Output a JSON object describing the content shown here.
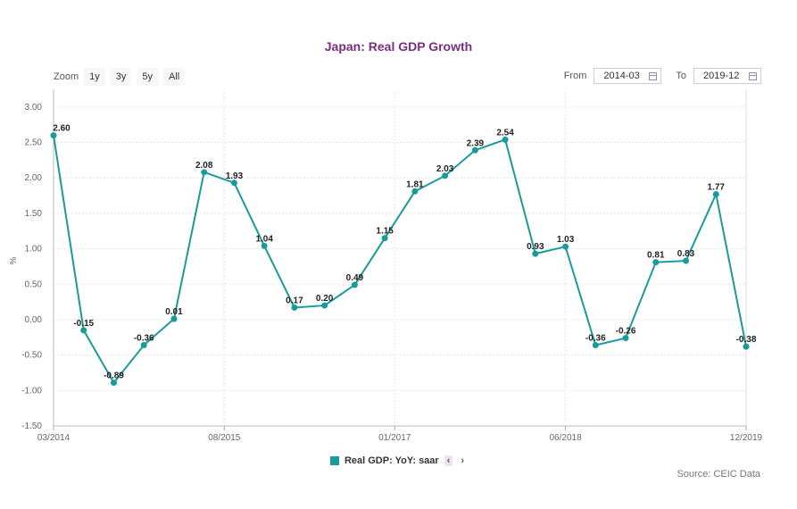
{
  "chart_data": {
    "type": "line",
    "title": "Japan: Real GDP Growth",
    "ylabel": "%",
    "ylim": [
      -1.5,
      3.25
    ],
    "yticks": [
      "3.00",
      "2.50",
      "2.00",
      "1.50",
      "1.00",
      "0.50",
      "0.00",
      "-0.50",
      "-1.00",
      "-1.50"
    ],
    "ytick_values": [
      3.0,
      2.5,
      2.0,
      1.5,
      1.0,
      0.5,
      0.0,
      -0.5,
      -1.0,
      -1.5
    ],
    "x_labels": [
      "03/2014",
      "08/2015",
      "01/2017",
      "06/2018",
      "12/2019"
    ],
    "x_label_indices": [
      0,
      5.67,
      11.33,
      17,
      23
    ],
    "grid": true,
    "legend_position": "bottom",
    "color": "#1a9a9a",
    "series": [
      {
        "name": "Real GDP: YoY: saar",
        "x": [
          "2014-03",
          "2014-06",
          "2014-09",
          "2014-12",
          "2015-03",
          "2015-06",
          "2015-09",
          "2015-12",
          "2016-03",
          "2016-06",
          "2016-09",
          "2016-12",
          "2017-03",
          "2017-06",
          "2017-09",
          "2017-12",
          "2018-03",
          "2018-06",
          "2018-09",
          "2018-12",
          "2019-03",
          "2019-06",
          "2019-09",
          "2019-12"
        ],
        "values": [
          2.6,
          -0.15,
          -0.89,
          -0.36,
          0.01,
          2.08,
          1.93,
          1.04,
          0.17,
          0.2,
          0.49,
          1.15,
          1.81,
          2.03,
          2.39,
          2.54,
          0.93,
          1.03,
          -0.36,
          -0.26,
          0.81,
          0.83,
          1.77,
          -0.38
        ],
        "labels": [
          "2.60",
          "-0.15",
          "-0.89",
          "-0.36",
          "0.01",
          "2.08",
          "1.93",
          "1.04",
          "0.17",
          "0.20",
          "0.49",
          "1.15",
          "1.81",
          "2.03",
          "2.39",
          "2.54",
          "0.93",
          "1.03",
          "-0.36",
          "-0.26",
          "0.81",
          "0.83",
          "1.77",
          "-0.38"
        ]
      }
    ]
  },
  "zoom": {
    "label": "Zoom",
    "options": [
      "1y",
      "3y",
      "5y",
      "All"
    ]
  },
  "range": {
    "from_label": "From",
    "from_value": "2014-03",
    "to_label": "To",
    "to_value": "2019-12"
  },
  "legend": {
    "prev": "‹",
    "next": "›"
  },
  "source": "Source: CEIC Data",
  "colors": {
    "title": "#7a2e82",
    "line": "#1a9a9a",
    "grid": "#e6e6e6"
  }
}
